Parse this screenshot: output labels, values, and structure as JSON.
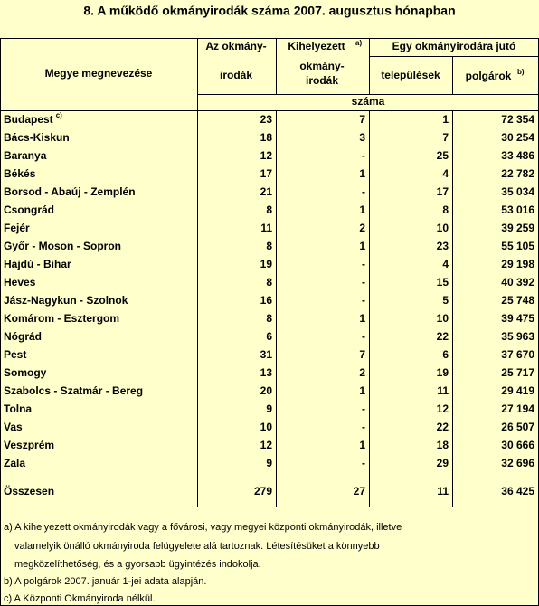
{
  "title": "8. A  működő okmányirodák  száma 2007.  augusztus hónapban",
  "header": {
    "region": "Megye megnevezése",
    "offices": [
      "Az okmány-",
      "irodák"
    ],
    "remote": {
      "line1": "Kihelyezett",
      "note": "a)",
      "line2": "okmány-",
      "line3": "irodák"
    },
    "per_office": "Egy okmányirodára jutó",
    "settlements": "települések",
    "citizens": {
      "text": "polgárok",
      "note": "b)"
    },
    "unit": "száma"
  },
  "table": {
    "rows": [
      {
        "name": "Budapest",
        "note": "c)",
        "values": [
          "23",
          "7",
          "1",
          "72 354"
        ]
      },
      {
        "name": "Bács-Kiskun",
        "values": [
          "18",
          "3",
          "7",
          "30 254"
        ]
      },
      {
        "name": "Baranya",
        "values": [
          "12",
          "-",
          "25",
          "33 486"
        ]
      },
      {
        "name": "Békés",
        "values": [
          "17",
          "1",
          "4",
          "22 782"
        ]
      },
      {
        "name": "Borsod - Abaúj - Zemplén",
        "values": [
          "21",
          "-",
          "17",
          "35 034"
        ]
      },
      {
        "name": "Csongrád",
        "values": [
          "8",
          "1",
          "8",
          "53 016"
        ]
      },
      {
        "name": "Fejér",
        "values": [
          "11",
          "2",
          "10",
          "39 259"
        ]
      },
      {
        "name": "Győr - Moson - Sopron",
        "values": [
          "8",
          "1",
          "23",
          "55 105"
        ]
      },
      {
        "name": "Hajdú - Bihar",
        "values": [
          "19",
          "-",
          "4",
          "29 198"
        ]
      },
      {
        "name": "Heves",
        "values": [
          "8",
          "-",
          "15",
          "40 392"
        ]
      },
      {
        "name": "Jász-Nagykun - Szolnok",
        "values": [
          "16",
          "-",
          "5",
          "25 748"
        ]
      },
      {
        "name": "Komárom - Esztergom",
        "values": [
          "8",
          "1",
          "10",
          "39 475"
        ]
      },
      {
        "name": "Nógrád",
        "values": [
          "6",
          "-",
          "22",
          "35 963"
        ]
      },
      {
        "name": "Pest",
        "values": [
          "31",
          "7",
          "6",
          "37 670"
        ]
      },
      {
        "name": "Somogy",
        "values": [
          "13",
          "2",
          "19",
          "25 717"
        ]
      },
      {
        "name": "Szabolcs - Szatmár - Bereg",
        "values": [
          "20",
          "1",
          "11",
          "29 419"
        ]
      },
      {
        "name": "Tolna",
        "values": [
          "9",
          "-",
          "12",
          "27 194"
        ]
      },
      {
        "name": "Vas",
        "values": [
          "10",
          "-",
          "22",
          "26 507"
        ]
      },
      {
        "name": "Veszprém",
        "values": [
          "12",
          "1",
          "18",
          "30 666"
        ]
      },
      {
        "name": "Zala",
        "values": [
          "9",
          "-",
          "29",
          "32 696"
        ]
      }
    ],
    "total": {
      "name": "Összesen",
      "values": [
        "279",
        "27",
        "11",
        "36 425"
      ]
    }
  },
  "footnotes": [
    "a) A kihelyezett okmányirodák vagy a fővárosi, vagy megyei központi okmányirodák, illetve",
    "valamelyik önálló okmányiroda felügyelete alá tartoznak. Létesítésüket a könnyebb",
    "megközelíthetőség, és a  gyorsabb ügyintézés indokolja.",
    "b) A  polgárok 2007. január 1-jei adata alapján.",
    "c) A Központi Okmányiroda nélkül."
  ]
}
